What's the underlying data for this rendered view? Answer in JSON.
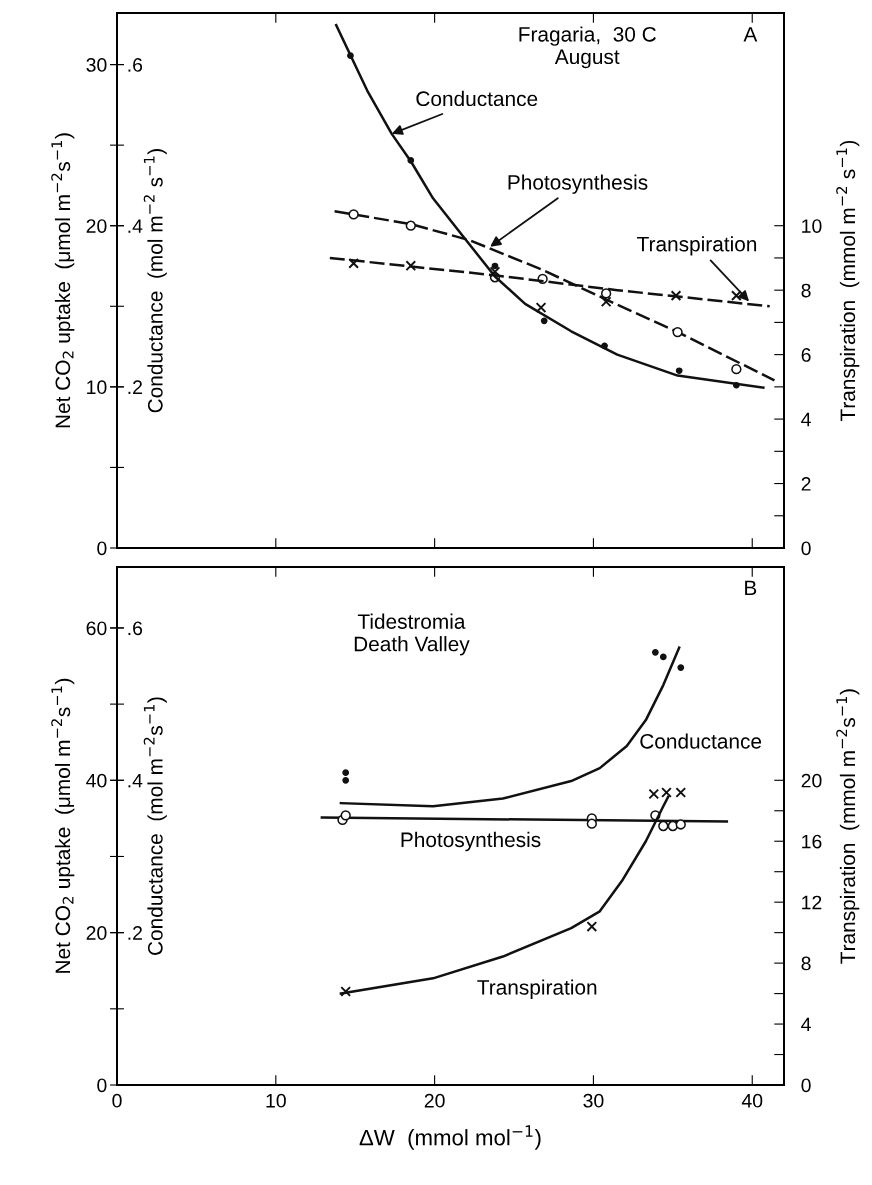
{
  "chart_data": [
    {
      "type": "line",
      "xlim": [
        0,
        42
      ],
      "xticks": [
        0,
        10,
        20,
        30,
        40
      ],
      "tick_labels": "y",
      "grid": false,
      "ylabel": "Net CO$_{2}$ uptake  (μmol m$^{−2}$s$^{−1}$)",
      "ylim": [
        0,
        33.2
      ],
      "yticks": [
        0,
        10,
        20,
        30
      ],
      "y3label": "Conductance  (mol m$^{−2}$ s$^{−1}$)",
      "y3lim": [
        0,
        0.664
      ],
      "y3ticks": [
        {
          "value": 0.1,
          "label": null
        },
        {
          "value": 0.2,
          "label": ".2"
        },
        {
          "value": 0.3,
          "label": null
        },
        {
          "value": 0.4,
          "label": ".4"
        },
        {
          "value": 0.5,
          "label": null
        },
        {
          "value": 0.6,
          "label": ".6"
        }
      ],
      "y2label": "Transpiration  (mmol m$^{−2}$ s$^{−1}$)",
      "y2lim": [
        0,
        16.6
      ],
      "y2ticks": [
        0,
        {
          "value": 1,
          "label": null
        },
        2,
        {
          "value": 3,
          "label": null
        },
        4,
        {
          "value": 5,
          "label": null
        },
        6,
        {
          "value": 7,
          "label": null
        },
        8,
        {
          "value": 9,
          "label": null
        },
        10
      ],
      "series": [
        {
          "type": "scatter",
          "axis": "y3",
          "marker": "circle",
          "color": "#111111",
          "x": [
            14.7,
            18.5,
            23.8,
            26.9,
            30.7,
            35.4,
            39.0
          ],
          "values": [
            0.611,
            0.481,
            0.35,
            0.282,
            0.251,
            0.22,
            0.202
          ]
        },
        {
          "axis": "y3",
          "line_style": "solid",
          "color": "#111111",
          "x": [
            13.8,
            15.8,
            17.3,
            18.5,
            19.9,
            21.7,
            23.8,
            25.7,
            28.6,
            31.5,
            35.3,
            40.7
          ],
          "values": [
            0.649,
            0.566,
            0.514,
            0.48,
            0.434,
            0.389,
            0.337,
            0.303,
            0.269,
            0.24,
            0.214,
            0.199
          ]
        },
        {
          "type": "scatter",
          "axis": "y",
          "marker": "circle",
          "color": "#ffffff",
          "x": [
            14.9,
            18.5,
            23.8,
            26.8,
            30.8,
            35.3,
            39.0
          ],
          "values": [
            20.7,
            20.0,
            16.8,
            16.7,
            15.8,
            13.4,
            11.1
          ]
        },
        {
          "axis": "y",
          "line_style": "dashed",
          "color": "#111111",
          "x": [
            13.7,
            18.5,
            22.2,
            26.7,
            31.5,
            35.3,
            41.4
          ],
          "values": [
            20.9,
            20.1,
            19.1,
            17.3,
            15.1,
            13.4,
            10.4
          ]
        },
        {
          "type": "scatter",
          "axis": "y2",
          "marker": "cross",
          "color": "#111111",
          "x": [
            14.9,
            18.5,
            23.8,
            26.7,
            30.8,
            35.2,
            39.0
          ],
          "values": [
            8.83,
            8.76,
            8.57,
            7.46,
            7.64,
            7.83,
            7.83
          ]
        },
        {
          "axis": "y2",
          "line_style": "dashed",
          "color": "#111111",
          "x": [
            13.4,
            23.8,
            31.5,
            41.1
          ],
          "values": [
            9.0,
            8.46,
            8.0,
            7.5
          ]
        }
      ],
      "annotations": [
        "Fragaria,  30 C\nAugust",
        "A",
        {
          "text": "Conductance",
          "x": 17.3,
          "y": 25.7
        },
        {
          "text": "Photosynthesis",
          "x": 23.5,
          "y": 18.7
        },
        {
          "text": "Transpiration",
          "x": 39.8,
          "y": 15.3
        }
      ]
    },
    {
      "type": "line",
      "xlim": [
        0,
        42
      ],
      "xticks": [
        0,
        10,
        20,
        30,
        40
      ],
      "grid": false,
      "xlabel": "ΔW  (mmol mol$^{−1}$)",
      "ylabel": "Net CO$_{2}$ uptake  (μmol m$^{−2}$s$^{−1}$)",
      "ylim": [
        0,
        68
      ],
      "yticks": [
        0,
        20,
        40,
        60
      ],
      "y3label": "Conductance  (mol m$^{−2}$s$^{−1}$)",
      "y3lim": [
        0,
        0.68
      ],
      "y3ticks": [
        {
          "value": 0.1,
          "label": null
        },
        {
          "value": 0.2,
          "label": ".2"
        },
        {
          "value": 0.3,
          "label": null
        },
        {
          "value": 0.4,
          "label": ".4"
        },
        {
          "value": 0.5,
          "label": null
        },
        {
          "value": 0.6,
          "label": ".6"
        }
      ],
      "y2label": "Transpiration  (mmol m$^{−2}$s$^{−1}$)",
      "y2lim": [
        0,
        34
      ],
      "y2ticks": [
        0,
        {
          "value": 2,
          "label": null
        },
        4,
        {
          "value": 6,
          "label": null
        },
        8,
        {
          "value": 10,
          "label": null
        },
        12,
        {
          "value": 14,
          "label": null
        },
        16,
        {
          "value": 18,
          "label": null
        },
        20
      ],
      "series": [
        {
          "type": "scatter",
          "axis": "y3",
          "marker": "circle",
          "color": "#111111",
          "x": [
            14.4,
            14.4,
            33.9,
            34.4,
            35.5
          ],
          "values": [
            0.41,
            0.4,
            0.568,
            0.562,
            0.548
          ]
        },
        {
          "axis": "y3",
          "line_style": "solid",
          "color": "#111111",
          "x": [
            14.1,
            19.9,
            24.3,
            28.6,
            30.4,
            32.1,
            33.3,
            34.4,
            35.4
          ],
          "values": [
            0.37,
            0.366,
            0.376,
            0.399,
            0.416,
            0.445,
            0.479,
            0.525,
            0.574
          ]
        },
        {
          "type": "scatter",
          "axis": "y",
          "marker": "circle",
          "color": "#ffffff",
          "x": [
            14.2,
            14.4,
            29.9,
            29.9,
            33.9,
            34.4,
            35.0,
            35.5
          ],
          "values": [
            34.8,
            35.4,
            35.0,
            34.3,
            35.4,
            34.0,
            34.0,
            34.2
          ]
        },
        {
          "axis": "y",
          "line_style": "solid",
          "color": "#111111",
          "x": [
            12.9,
            38.4
          ],
          "values": [
            35.1,
            34.6
          ]
        },
        {
          "type": "scatter",
          "axis": "y2",
          "marker": "cross",
          "color": "#111111",
          "x": [
            14.4,
            29.9,
            33.8,
            34.6,
            35.5
          ],
          "values": [
            6.14,
            10.4,
            19.1,
            19.2,
            19.2
          ]
        },
        {
          "axis": "y2",
          "line_style": "solid",
          "color": "#111111",
          "x": [
            14.1,
            19.9,
            24.3,
            28.6,
            30.4,
            31.8,
            33.3,
            34.4,
            34.7
          ],
          "values": [
            6.0,
            7.0,
            8.43,
            10.3,
            11.4,
            13.4,
            16.0,
            18.3,
            18.9
          ]
        }
      ],
      "annotations": [
        "Tidestromia\nDeath Valley",
        "B",
        "Conductance",
        "Photosynthesis",
        "Transpiration"
      ]
    }
  ]
}
